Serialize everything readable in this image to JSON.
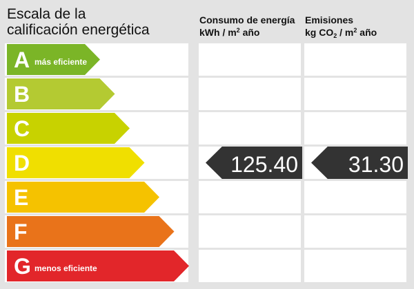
{
  "title": "Escala de la\ncalificación energética",
  "columns": {
    "energy": {
      "line1": "Consumo de energía",
      "line2_prefix": "kWh / m",
      "line2_sup": "2",
      "line2_suffix": " año"
    },
    "emissions": {
      "line1": "Emisiones",
      "line2_prefix": "kg CO",
      "line2_sub": "2",
      "line2_mid": " / m",
      "line2_sup": "2",
      "line2_suffix": " año"
    }
  },
  "classes": [
    {
      "letter": "A",
      "note": "más eficiente",
      "color": "#7bb527"
    },
    {
      "letter": "B",
      "note": "",
      "color": "#b4ca32"
    },
    {
      "letter": "C",
      "note": "",
      "color": "#c8d200"
    },
    {
      "letter": "D",
      "note": "",
      "color": "#f0df00"
    },
    {
      "letter": "E",
      "note": "",
      "color": "#f5c200"
    },
    {
      "letter": "F",
      "note": "",
      "color": "#e9731a"
    },
    {
      "letter": "G",
      "note": "menos eficiente",
      "color": "#e2262a"
    }
  ],
  "rating": {
    "class": "D",
    "energy_value": "125.40",
    "emissions_value": "31.30",
    "pointer_color": "#333333"
  }
}
